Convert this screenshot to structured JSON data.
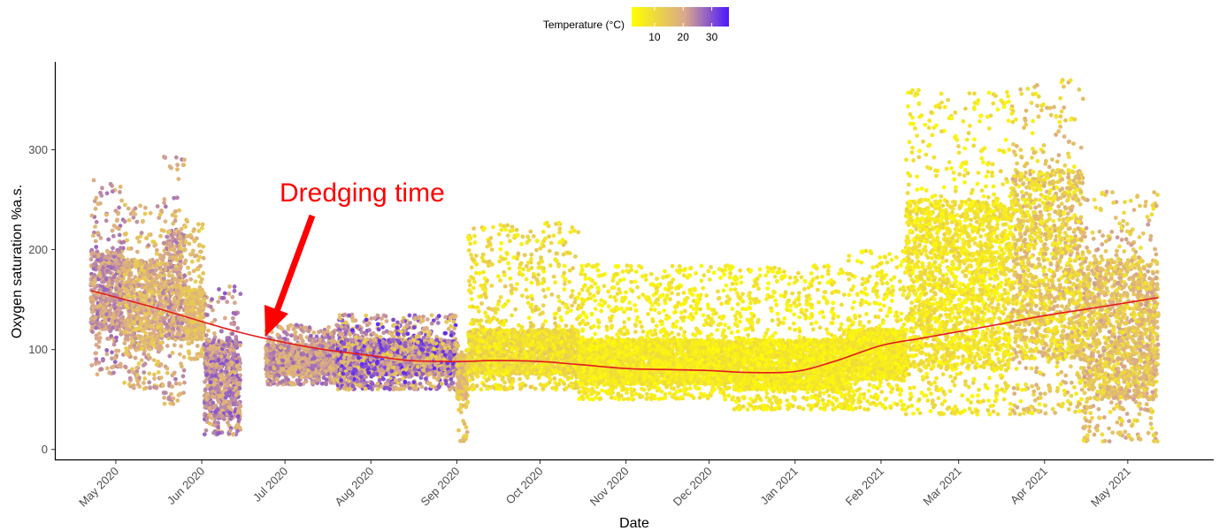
{
  "chart_data": {
    "type": "scatter",
    "title": "",
    "xlabel": "Date",
    "ylabel": "Oxygen saturation %a.s.",
    "x_axis": {
      "kind": "date",
      "range": [
        "2020-04-09",
        "2021-06-01"
      ],
      "tick_dates": [
        "2020-05-01",
        "2020-06-01",
        "2020-07-01",
        "2020-08-01",
        "2020-09-01",
        "2020-10-01",
        "2020-11-01",
        "2020-12-01",
        "2021-01-01",
        "2021-02-01",
        "2021-03-01",
        "2021-04-01",
        "2021-05-01"
      ],
      "tick_labels": [
        "May 2020",
        "Jun 2020",
        "Jul 2020",
        "Aug 2020",
        "Sep 2020",
        "Oct 2020",
        "Nov 2020",
        "Dec 2020",
        "Jan 2021",
        "Feb 2021",
        "Mar 2021",
        "Apr 2021",
        "May 2021"
      ]
    },
    "y_axis": {
      "range": [
        -10,
        388
      ],
      "ticks": [
        0,
        100,
        200,
        300
      ]
    },
    "grid": false,
    "color_legend": {
      "title": "Temperature (°C)",
      "placement": "top-center",
      "scale_range": [
        2,
        36
      ],
      "ticks": [
        10,
        20,
        30
      ],
      "colors": [
        "#ffff00",
        "#d9a88c",
        "#4b16ff"
      ]
    },
    "series": [
      {
        "kind": "points",
        "segments": [
          {
            "start": "2020-04-22",
            "end": "2020-05-04",
            "y_min": 75,
            "y_max": 270,
            "typical": [
              120,
              200
            ],
            "temp": [
              16,
              28
            ]
          },
          {
            "start": "2020-05-04",
            "end": "2020-05-18",
            "y_min": 60,
            "y_max": 245,
            "typical": [
              100,
              190
            ],
            "temp": [
              12,
              24
            ]
          },
          {
            "start": "2020-05-18",
            "end": "2020-05-26",
            "y_min": 45,
            "y_max": 295,
            "typical": [
              110,
              220
            ],
            "temp": [
              14,
              26
            ]
          },
          {
            "start": "2020-05-26",
            "end": "2020-06-02",
            "y_min": 90,
            "y_max": 230,
            "typical": [
              110,
              160
            ],
            "temp": [
              12,
              20
            ]
          },
          {
            "start": "2020-06-02",
            "end": "2020-06-15",
            "y_min": 15,
            "y_max": 165,
            "typical": [
              30,
              110
            ],
            "temp": [
              16,
              30
            ]
          },
          {
            "start": "2020-06-24",
            "end": "2020-07-30",
            "y_min": 65,
            "y_max": 125,
            "typical": [
              75,
              105
            ],
            "temp": [
              16,
              28
            ]
          },
          {
            "start": "2020-07-20",
            "end": "2020-09-01",
            "y_min": 60,
            "y_max": 135,
            "typical": [
              75,
              110
            ],
            "temp": [
              12,
              34
            ]
          },
          {
            "start": "2020-09-01",
            "end": "2020-09-05",
            "y_min": 8,
            "y_max": 105,
            "typical": [
              50,
              95
            ],
            "temp": [
              10,
              20
            ]
          },
          {
            "start": "2020-09-05",
            "end": "2020-10-15",
            "y_min": 60,
            "y_max": 228,
            "typical": [
              75,
              120
            ],
            "temp": [
              4,
              14
            ]
          },
          {
            "start": "2020-10-15",
            "end": "2020-12-10",
            "y_min": 50,
            "y_max": 185,
            "typical": [
              65,
              110
            ],
            "temp": [
              3,
              10
            ]
          },
          {
            "start": "2020-12-10",
            "end": "2021-01-20",
            "y_min": 40,
            "y_max": 185,
            "typical": [
              60,
              110
            ],
            "temp": [
              3,
              10
            ]
          },
          {
            "start": "2021-01-20",
            "end": "2021-02-10",
            "y_min": 40,
            "y_max": 200,
            "typical": [
              70,
              120
            ],
            "temp": [
              3,
              10
            ]
          },
          {
            "start": "2021-02-10",
            "end": "2021-03-20",
            "y_min": 35,
            "y_max": 360,
            "typical": [
              80,
              250
            ],
            "temp": [
              3,
              12
            ]
          },
          {
            "start": "2021-03-20",
            "end": "2021-04-15",
            "y_min": 35,
            "y_max": 372,
            "typical": [
              90,
              280
            ],
            "temp": [
              5,
              20
            ]
          },
          {
            "start": "2021-04-15",
            "end": "2021-05-12",
            "y_min": 8,
            "y_max": 260,
            "typical": [
              50,
              190
            ],
            "temp": [
              8,
              22
            ]
          }
        ]
      },
      {
        "kind": "smooth-line",
        "color": "#e41a1c",
        "x": [
          "2020-04-22",
          "2020-05-15",
          "2020-06-01",
          "2020-06-15",
          "2020-07-01",
          "2020-07-15",
          "2020-08-01",
          "2020-08-15",
          "2020-09-01",
          "2020-09-15",
          "2020-10-01",
          "2020-10-15",
          "2020-11-01",
          "2020-11-15",
          "2020-12-01",
          "2020-12-15",
          "2021-01-01",
          "2021-01-15",
          "2021-02-01",
          "2021-02-15",
          "2021-03-01",
          "2021-03-15",
          "2021-04-01",
          "2021-04-15",
          "2021-05-01",
          "2021-05-12"
        ],
        "y": [
          159,
          142,
          128,
          117,
          107,
          100,
          94,
          89,
          88,
          89,
          88,
          85,
          81,
          80,
          79,
          77,
          78,
          88,
          104,
          111,
          118,
          125,
          134,
          140,
          147,
          152
        ]
      }
    ],
    "annotations": [
      {
        "text": "Dredging time",
        "color": "#ff0000",
        "arrow_tip": {
          "x": "2020-06-18",
          "y": 114
        }
      }
    ]
  }
}
